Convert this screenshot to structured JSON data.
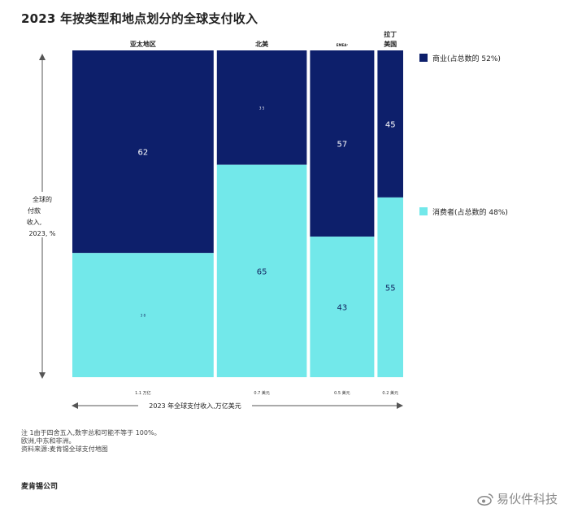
{
  "title": "2023 年按类型和地点划分的全球支付收入",
  "chart_data": {
    "type": "bar",
    "subtype": "marimekko-stacked-100",
    "title": "2023 年按类型和地点划分的全球支付收入",
    "ylabel_lines": [
      "全球的",
      "付款",
      "收入,",
      "2023, %"
    ],
    "xlabel": "2023 年全球支付收入,万亿美元",
    "ylim": [
      0,
      100
    ],
    "categories": [
      {
        "name_lines": [
          "亚太地区"
        ],
        "width_label": "1.1 万亿",
        "revenue": 1.1
      },
      {
        "name_lines": [
          "北美"
        ],
        "width_label": "0.7 美元",
        "revenue": 0.7
      },
      {
        "name_lines": [
          "EMEA¹"
        ],
        "width_label": "0.5 美元",
        "revenue": 0.5
      },
      {
        "name_lines": [
          "拉丁",
          "美国"
        ],
        "width_label": "0.2 美元",
        "revenue": 0.2
      }
    ],
    "series": [
      {
        "name": "商业(占总数的 52%)",
        "color": "#0d1f6b",
        "values": [
          62,
          35,
          57,
          45
        ],
        "labels": [
          "62",
          "3 5",
          "57",
          "45"
        ]
      },
      {
        "name": "消费者(占总数的 48%)",
        "color": "#72e8ea",
        "values": [
          38,
          65,
          43,
          55
        ],
        "labels": [
          "3 8",
          "65",
          "43",
          "55"
        ]
      }
    ],
    "legend_position": "right"
  },
  "notes": [
    "注 1由于四舍五入,数字总和可能不等于 100%。",
    "欧洲,中东和非洲。",
    "资料来源:麦肯锡全球支付地图"
  ],
  "brand": "麦肯锡公司",
  "watermark": "易伙件科技"
}
